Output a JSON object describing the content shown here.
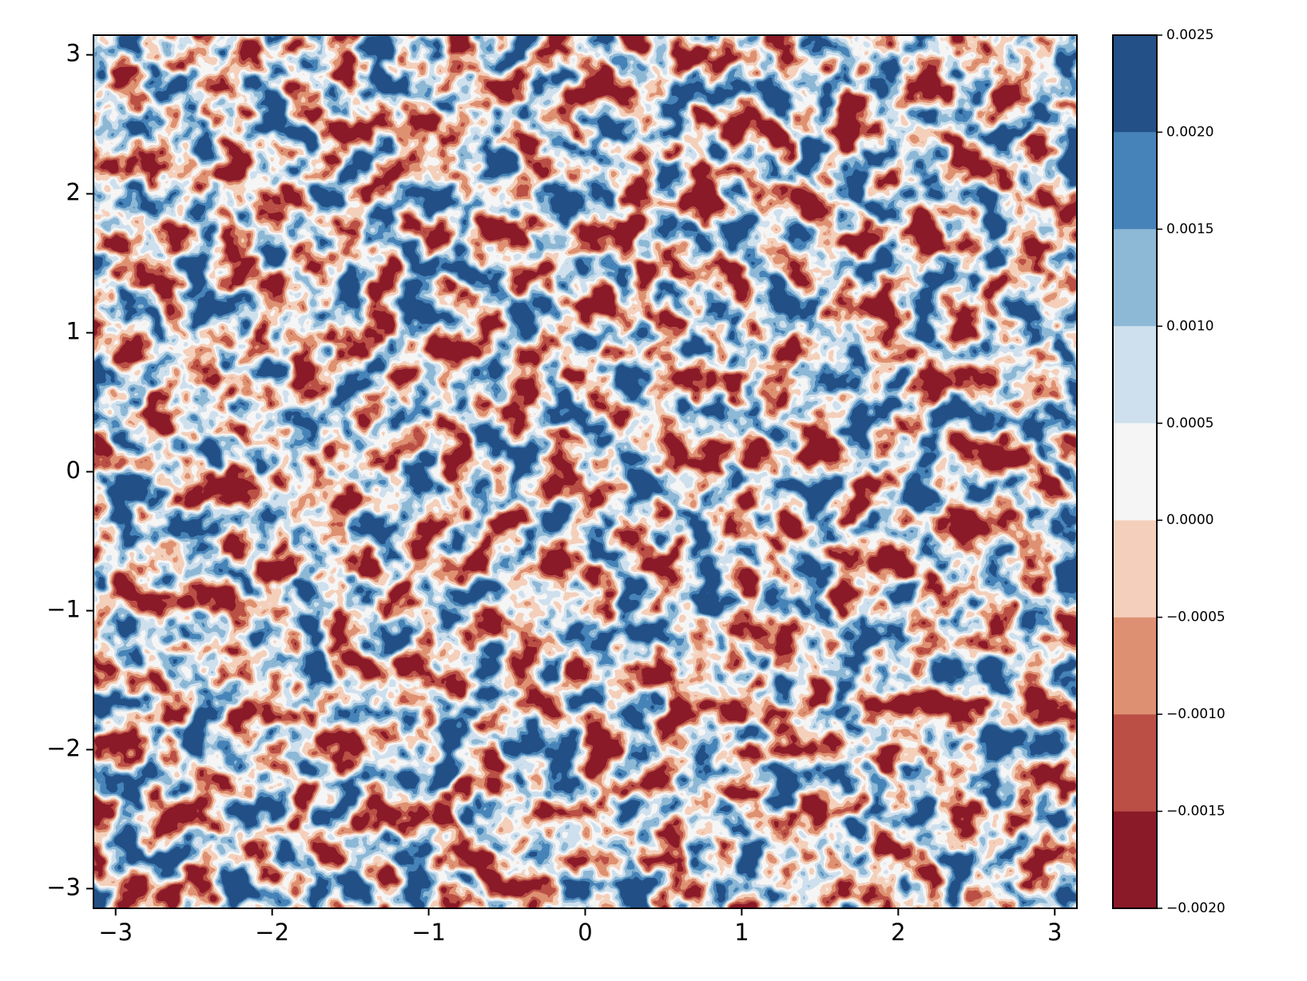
{
  "chart_data": {
    "type": "contourf",
    "xlim": [
      -3.14159,
      3.14159
    ],
    "ylim": [
      -3.14159,
      3.14159
    ],
    "xticks": [
      {
        "value": -3,
        "label": "−3"
      },
      {
        "value": -2,
        "label": "−2"
      },
      {
        "value": -1,
        "label": "−1"
      },
      0,
      1,
      2,
      3
    ],
    "yticks": [
      {
        "value": -3,
        "label": "−3"
      },
      {
        "value": -2,
        "label": "−2"
      },
      {
        "value": -1,
        "label": "−1"
      },
      0,
      1,
      2,
      3
    ],
    "colorbar": {
      "ticks": [
        {
          "value": -0.002,
          "label": "−0.0020"
        },
        {
          "value": -0.0015,
          "label": "−0.0015"
        },
        {
          "value": -0.001,
          "label": "−0.0010"
        },
        {
          "value": -0.0005,
          "label": "−0.0005"
        },
        {
          "value": 0,
          "label": "0.0000"
        },
        {
          "value": 0.0005,
          "label": "0.0005"
        },
        {
          "value": 0.001,
          "label": "0.0010"
        },
        {
          "value": 0.0015,
          "label": "0.0015"
        },
        {
          "value": 0.002,
          "label": "0.0020"
        },
        {
          "value": 0.0025,
          "label": "0.0025"
        }
      ],
      "colors": [
        "#8b1a28",
        "#bb4f45",
        "#de9172",
        "#f4cfbb",
        "#f5f5f5",
        "#cee0ee",
        "#8db8d6",
        "#4683b9",
        "#235087"
      ]
    }
  }
}
